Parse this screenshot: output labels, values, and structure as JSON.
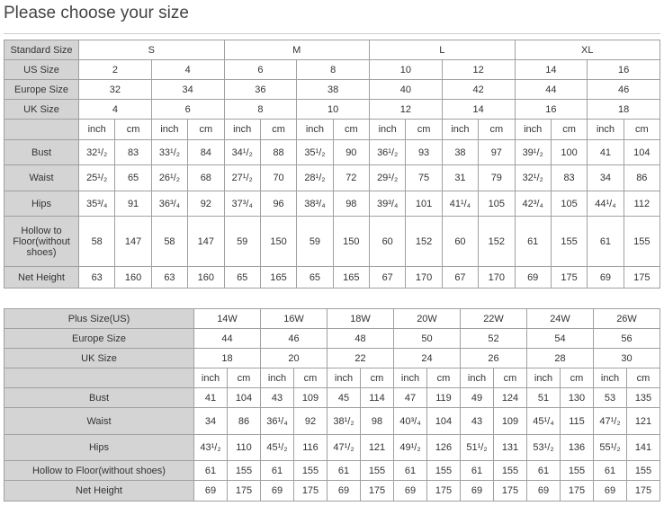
{
  "title": "Please choose your size",
  "standard": {
    "rows": [
      {
        "label": "Standard Size",
        "span": 4,
        "values": [
          "S",
          "M",
          "L",
          "XL"
        ]
      },
      {
        "label": "US Size",
        "span": 2,
        "values": [
          "2",
          "4",
          "6",
          "8",
          "10",
          "12",
          "14",
          "16"
        ]
      },
      {
        "label": "Europe Size",
        "span": 2,
        "values": [
          "32",
          "34",
          "36",
          "38",
          "40",
          "42",
          "44",
          "46"
        ]
      },
      {
        "label": "UK Size",
        "span": 2,
        "values": [
          "4",
          "6",
          "8",
          "10",
          "12",
          "14",
          "16",
          "18"
        ]
      },
      {
        "label": "",
        "span": 1,
        "values": [
          "inch",
          "cm",
          "inch",
          "cm",
          "inch",
          "cm",
          "inch",
          "cm",
          "inch",
          "cm",
          "inch",
          "cm",
          "inch",
          "cm",
          "inch",
          "cm"
        ]
      },
      {
        "label": "Bust",
        "span": 1,
        "values": [
          "32¹/₂",
          "83",
          "33¹/₂",
          "84",
          "34¹/₂",
          "88",
          "35¹/₂",
          "90",
          "36¹/₂",
          "93",
          "38",
          "97",
          "39¹/₂",
          "100",
          "41",
          "104"
        ]
      },
      {
        "label": "Waist",
        "span": 1,
        "values": [
          "25¹/₂",
          "65",
          "26¹/₂",
          "68",
          "27¹/₂",
          "70",
          "28¹/₂",
          "72",
          "29¹/₂",
          "75",
          "31",
          "79",
          "32¹/₂",
          "83",
          "34",
          "86"
        ]
      },
      {
        "label": "Hips",
        "span": 1,
        "values": [
          "35³/₄",
          "91",
          "36³/₄",
          "92",
          "37³/₄",
          "96",
          "38³/₄",
          "98",
          "39³/₄",
          "101",
          "41¹/₄",
          "105",
          "42³/₄",
          "105",
          "44¹/₄",
          "112"
        ]
      },
      {
        "label": "Hollow to Floor(without shoes)",
        "span": 1,
        "values": [
          "58",
          "147",
          "58",
          "147",
          "59",
          "150",
          "59",
          "150",
          "60",
          "152",
          "60",
          "152",
          "61",
          "155",
          "61",
          "155"
        ]
      },
      {
        "label": "Net Height",
        "span": 1,
        "values": [
          "63",
          "160",
          "63",
          "160",
          "65",
          "165",
          "65",
          "165",
          "67",
          "170",
          "67",
          "170",
          "69",
          "175",
          "69",
          "175"
        ]
      }
    ]
  },
  "plus": {
    "rows": [
      {
        "label": "Plus Size(US)",
        "span": 2,
        "values": [
          "14W",
          "16W",
          "18W",
          "20W",
          "22W",
          "24W",
          "26W"
        ]
      },
      {
        "label": "Europe Size",
        "span": 2,
        "values": [
          "44",
          "46",
          "48",
          "50",
          "52",
          "54",
          "56"
        ]
      },
      {
        "label": "UK Size",
        "span": 2,
        "values": [
          "18",
          "20",
          "22",
          "24",
          "26",
          "28",
          "30"
        ]
      },
      {
        "label": "",
        "span": 1,
        "values": [
          "inch",
          "cm",
          "inch",
          "cm",
          "inch",
          "cm",
          "inch",
          "cm",
          "inch",
          "cm",
          "inch",
          "cm",
          "inch",
          "cm"
        ]
      },
      {
        "label": "Bust",
        "span": 1,
        "values": [
          "41",
          "104",
          "43",
          "109",
          "45",
          "114",
          "47",
          "119",
          "49",
          "124",
          "51",
          "130",
          "53",
          "135"
        ]
      },
      {
        "label": "Waist",
        "span": 1,
        "values": [
          "34",
          "86",
          "36¹/₄",
          "92",
          "38¹/₂",
          "98",
          "40³/₄",
          "104",
          "43",
          "109",
          "45¹/₄",
          "115",
          "47¹/₂",
          "121"
        ]
      },
      {
        "label": "Hips",
        "span": 1,
        "values": [
          "43¹/₂",
          "110",
          "45¹/₂",
          "116",
          "47¹/₂",
          "121",
          "49¹/₂",
          "126",
          "51¹/₂",
          "131",
          "53¹/₂",
          "136",
          "55¹/₂",
          "141"
        ]
      },
      {
        "label": "Hollow to Floor(without shoes)",
        "span": 1,
        "values": [
          "61",
          "155",
          "61",
          "155",
          "61",
          "155",
          "61",
          "155",
          "61",
          "155",
          "61",
          "155",
          "61",
          "155"
        ]
      },
      {
        "label": "Net Height",
        "span": 1,
        "values": [
          "69",
          "175",
          "69",
          "175",
          "69",
          "175",
          "69",
          "175",
          "69",
          "175",
          "69",
          "175",
          "69",
          "175"
        ]
      }
    ]
  }
}
